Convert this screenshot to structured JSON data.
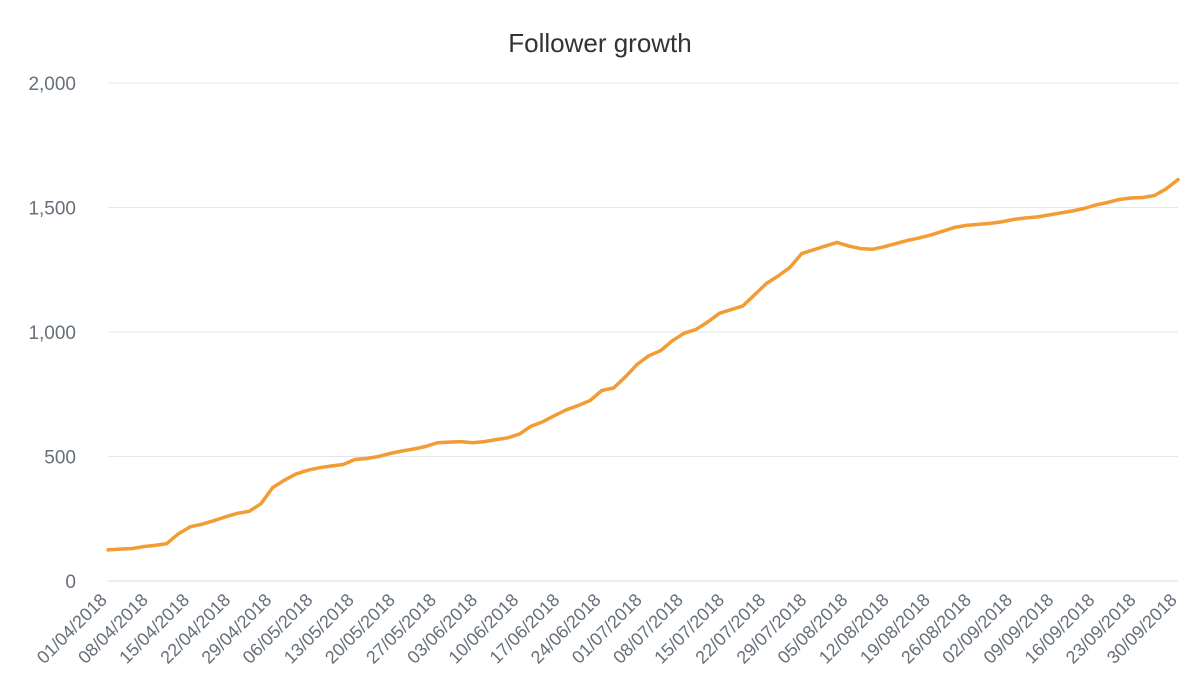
{
  "chart_data": {
    "type": "line",
    "title": "Follower growth",
    "xlabel": "",
    "ylabel": "",
    "ylim": [
      0,
      2000
    ],
    "yticks": [
      "0",
      "500",
      "1,000",
      "1,500",
      "2,000"
    ],
    "ytick_values": [
      0,
      500,
      1000,
      1500,
      2000
    ],
    "xlim": [
      "2018-04-01",
      "2018-09-30"
    ],
    "xticks": [
      "01/04/2018",
      "08/04/2018",
      "15/04/2018",
      "22/04/2018",
      "29/04/2018",
      "06/05/2018",
      "13/05/2018",
      "20/05/2018",
      "27/05/2018",
      "03/06/2018",
      "10/06/2018",
      "17/06/2018",
      "24/06/2018",
      "01/07/2018",
      "08/07/2018",
      "15/07/2018",
      "22/07/2018",
      "29/07/2018",
      "05/08/2018",
      "12/08/2018",
      "19/08/2018",
      "26/08/2018",
      "02/09/2018",
      "09/09/2018",
      "16/09/2018",
      "23/09/2018",
      "30/09/2018"
    ],
    "xtick_dates": [
      "2018-04-01",
      "2018-04-08",
      "2018-04-15",
      "2018-04-22",
      "2018-04-29",
      "2018-05-06",
      "2018-05-13",
      "2018-05-20",
      "2018-05-27",
      "2018-06-03",
      "2018-06-10",
      "2018-06-17",
      "2018-06-24",
      "2018-07-01",
      "2018-07-08",
      "2018-07-15",
      "2018-07-22",
      "2018-07-29",
      "2018-08-05",
      "2018-08-12",
      "2018-08-19",
      "2018-08-26",
      "2018-09-02",
      "2018-09-09",
      "2018-09-16",
      "2018-09-23",
      "2018-09-30"
    ],
    "grid": true,
    "legend": "none",
    "series": [
      {
        "color": "#f29c33",
        "x": [
          "2018-04-01",
          "2018-04-03",
          "2018-04-05",
          "2018-04-07",
          "2018-04-09",
          "2018-04-11",
          "2018-04-13",
          "2018-04-15",
          "2018-04-17",
          "2018-04-19",
          "2018-04-21",
          "2018-04-23",
          "2018-04-25",
          "2018-04-27",
          "2018-04-29",
          "2018-05-01",
          "2018-05-03",
          "2018-05-05",
          "2018-05-07",
          "2018-05-09",
          "2018-05-11",
          "2018-05-13",
          "2018-05-15",
          "2018-05-17",
          "2018-05-19",
          "2018-05-21",
          "2018-05-23",
          "2018-05-25",
          "2018-05-27",
          "2018-05-29",
          "2018-05-31",
          "2018-06-02",
          "2018-06-04",
          "2018-06-06",
          "2018-06-08",
          "2018-06-10",
          "2018-06-12",
          "2018-06-14",
          "2018-06-16",
          "2018-06-18",
          "2018-06-20",
          "2018-06-22",
          "2018-06-24",
          "2018-06-26",
          "2018-06-28",
          "2018-06-30",
          "2018-07-02",
          "2018-07-04",
          "2018-07-06",
          "2018-07-08",
          "2018-07-10",
          "2018-07-12",
          "2018-07-14",
          "2018-07-16",
          "2018-07-18",
          "2018-07-20",
          "2018-07-22",
          "2018-07-24",
          "2018-07-26",
          "2018-07-28",
          "2018-07-30",
          "2018-08-01",
          "2018-08-03",
          "2018-08-05",
          "2018-08-07",
          "2018-08-09",
          "2018-08-11",
          "2018-08-13",
          "2018-08-15",
          "2018-08-17",
          "2018-08-19",
          "2018-08-21",
          "2018-08-23",
          "2018-08-25",
          "2018-08-27",
          "2018-08-29",
          "2018-08-31",
          "2018-09-02",
          "2018-09-04",
          "2018-09-06",
          "2018-09-08",
          "2018-09-10",
          "2018-09-12",
          "2018-09-14",
          "2018-09-16",
          "2018-09-18",
          "2018-09-20",
          "2018-09-22",
          "2018-09-24",
          "2018-09-26",
          "2018-09-28",
          "2018-09-30"
        ],
        "values": [
          125,
          128,
          130,
          138,
          143,
          150,
          190,
          218,
          228,
          242,
          258,
          272,
          280,
          310,
          375,
          405,
          430,
          445,
          455,
          462,
          468,
          488,
          492,
          500,
          512,
          522,
          530,
          540,
          555,
          558,
          560,
          555,
          560,
          568,
          575,
          590,
          622,
          640,
          665,
          688,
          705,
          725,
          765,
          775,
          820,
          870,
          905,
          925,
          965,
          995,
          1010,
          1040,
          1075,
          1090,
          1105,
          1150,
          1195,
          1225,
          1260,
          1315,
          1330,
          1345,
          1360,
          1345,
          1335,
          1332,
          1342,
          1355,
          1368,
          1378,
          1390,
          1405,
          1420,
          1428,
          1432,
          1436,
          1442,
          1452,
          1458,
          1462,
          1470,
          1478,
          1486,
          1496,
          1510,
          1520,
          1532,
          1538,
          1540,
          1548,
          1575,
          1612
        ]
      }
    ]
  }
}
